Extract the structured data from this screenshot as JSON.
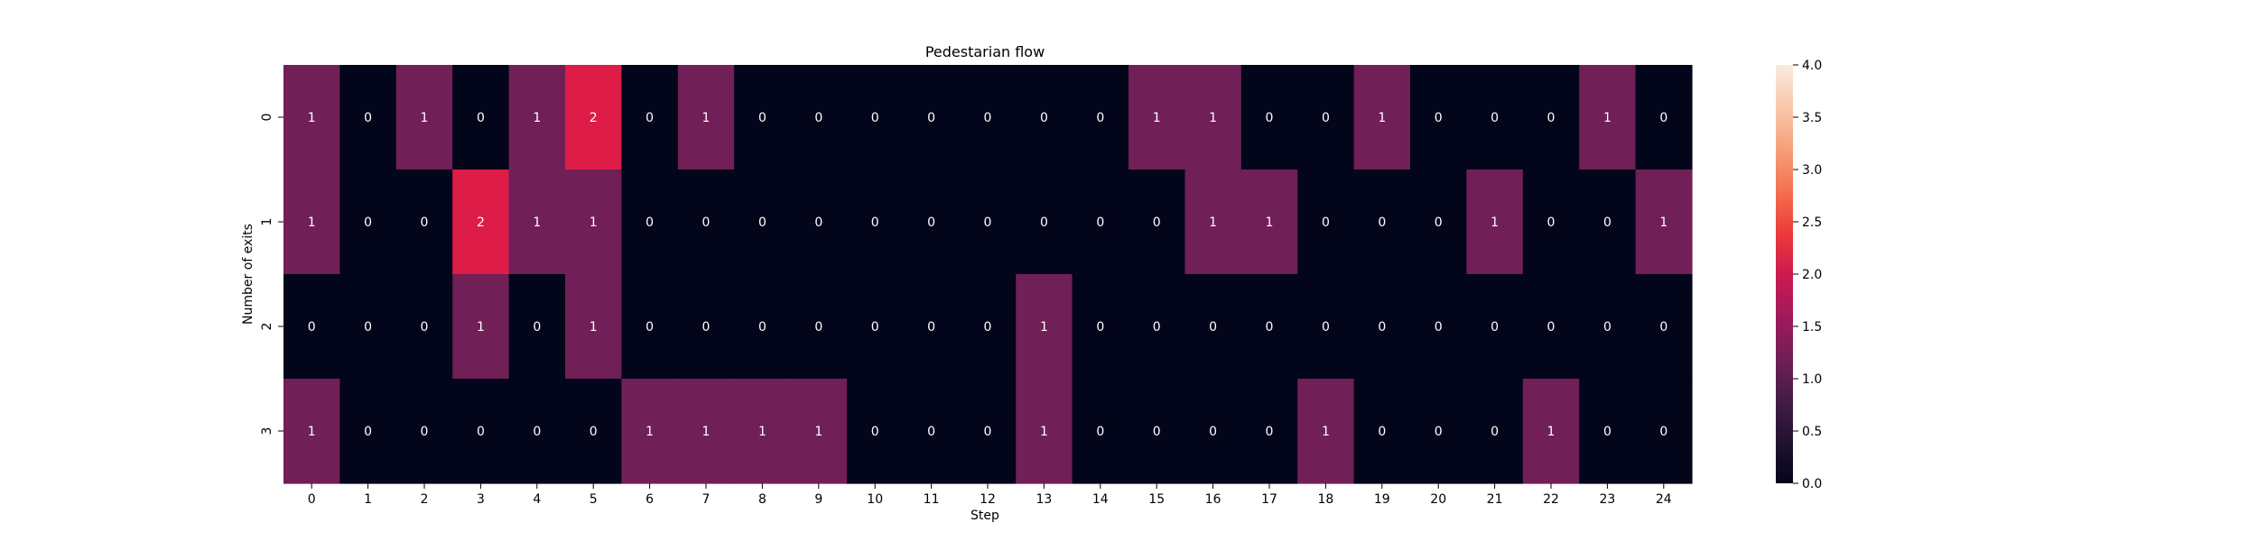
{
  "chart_data": {
    "type": "heatmap",
    "title": "Pedestarian flow",
    "xlabel": "Step",
    "ylabel": "Number of exits",
    "x_categories": [
      "0",
      "1",
      "2",
      "3",
      "4",
      "5",
      "6",
      "7",
      "8",
      "9",
      "10",
      "11",
      "12",
      "13",
      "14",
      "15",
      "16",
      "17",
      "18",
      "19",
      "20",
      "21",
      "22",
      "23",
      "24"
    ],
    "y_categories": [
      "0",
      "1",
      "2",
      "3"
    ],
    "values": [
      [
        1,
        0,
        1,
        0,
        1,
        2,
        0,
        1,
        0,
        0,
        0,
        0,
        0,
        0,
        0,
        1,
        1,
        0,
        0,
        1,
        0,
        0,
        0,
        1,
        0
      ],
      [
        1,
        0,
        0,
        2,
        1,
        1,
        0,
        0,
        0,
        0,
        0,
        0,
        0,
        0,
        0,
        0,
        1,
        1,
        0,
        0,
        0,
        1,
        0,
        0,
        1
      ],
      [
        0,
        0,
        0,
        1,
        0,
        1,
        0,
        0,
        0,
        0,
        0,
        0,
        0,
        1,
        0,
        0,
        0,
        0,
        0,
        0,
        0,
        0,
        0,
        0,
        0
      ],
      [
        1,
        0,
        0,
        0,
        0,
        0,
        1,
        1,
        1,
        1,
        0,
        0,
        0,
        1,
        0,
        0,
        0,
        0,
        1,
        0,
        0,
        0,
        1,
        0,
        0
      ]
    ],
    "colorbar": {
      "vmin": 0,
      "vmax": 4,
      "ticks": [
        "0.0",
        "0.5",
        "1.0",
        "1.5",
        "2.0",
        "2.5",
        "3.0",
        "3.5",
        "4.0"
      ],
      "colormap": "rocket"
    },
    "colors": {
      "0": "#03051a",
      "1": "#701f57",
      "2": "#dd1c47"
    },
    "legend": "none",
    "grid": false
  }
}
